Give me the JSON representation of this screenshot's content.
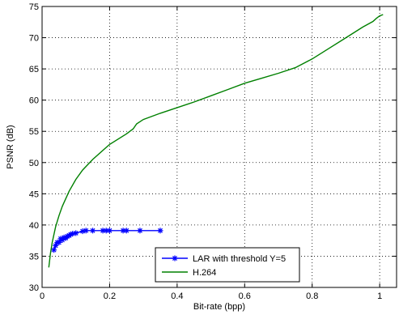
{
  "chart_data": {
    "type": "line",
    "title": "",
    "xlabel": "Bit-rate (bpp)",
    "ylabel": "PSNR (dB)",
    "xlim": [
      0,
      1.05
    ],
    "ylim": [
      30,
      75
    ],
    "x_ticks": [
      0,
      0.2,
      0.4,
      0.6,
      0.8,
      1
    ],
    "x_tick_labels": [
      "0",
      "0.2",
      "0.4",
      "0.6",
      "0.8",
      "1"
    ],
    "y_ticks": [
      30,
      35,
      40,
      45,
      50,
      55,
      60,
      65,
      70,
      75
    ],
    "y_tick_labels": [
      "30",
      "35",
      "40",
      "45",
      "50",
      "55",
      "60",
      "65",
      "70",
      "75"
    ],
    "grid": true,
    "grid_style": "dotted",
    "legend_position": "bottom-right",
    "series": [
      {
        "name": "LAR with threshold Y=5",
        "color": "#0000ff",
        "marker": "star",
        "x": [
          0.035,
          0.04,
          0.045,
          0.05,
          0.055,
          0.06,
          0.065,
          0.07,
          0.075,
          0.08,
          0.085,
          0.09,
          0.1,
          0.12,
          0.13,
          0.15,
          0.18,
          0.19,
          0.2,
          0.24,
          0.25,
          0.29,
          0.35
        ],
        "y": [
          36.0,
          36.7,
          37.2,
          37.2,
          37.8,
          37.6,
          38.0,
          37.9,
          38.2,
          38.3,
          38.5,
          38.6,
          38.7,
          39.0,
          39.1,
          39.1,
          39.1,
          39.1,
          39.1,
          39.1,
          39.1,
          39.1,
          39.1
        ]
      },
      {
        "name": "H.264",
        "color": "#008000",
        "marker": "none",
        "x": [
          0.02,
          0.025,
          0.03,
          0.04,
          0.05,
          0.06,
          0.08,
          0.1,
          0.12,
          0.15,
          0.2,
          0.25,
          0.27,
          0.28,
          0.3,
          0.35,
          0.4,
          0.45,
          0.5,
          0.55,
          0.6,
          0.65,
          0.7,
          0.75,
          0.8,
          0.85,
          0.9,
          0.95,
          0.98,
          0.99,
          1.0,
          1.01
        ],
        "y": [
          33.2,
          35.5,
          37.2,
          39.7,
          41.5,
          43.0,
          45.4,
          47.3,
          48.8,
          50.5,
          52.9,
          54.6,
          55.4,
          56.2,
          56.9,
          57.9,
          58.8,
          59.7,
          60.7,
          61.7,
          62.7,
          63.5,
          64.3,
          65.2,
          66.6,
          68.3,
          70.0,
          71.7,
          72.6,
          73.1,
          73.5,
          73.7
        ]
      }
    ]
  }
}
